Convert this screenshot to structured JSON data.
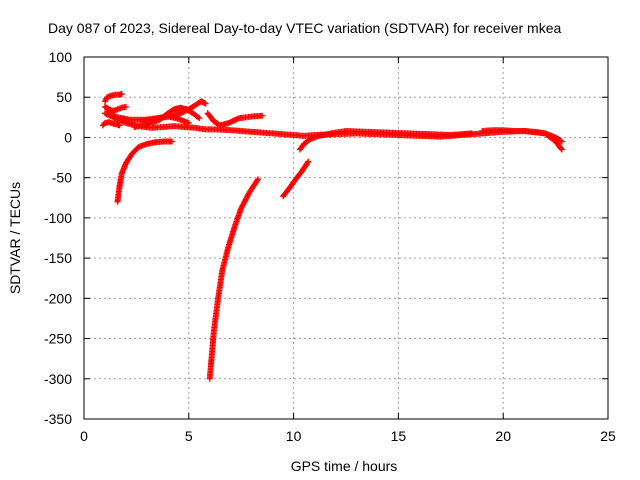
{
  "chart_data": {
    "type": "scatter",
    "title": "Day 087 of 2023, Sidereal Day-to-day VTEC variation (SDTVAR) for receiver mkea",
    "xlabel": "GPS time / hours",
    "ylabel": "SDTVAR / TECUs",
    "xlim": [
      0,
      25
    ],
    "ylim": [
      -350,
      100
    ],
    "xticks": [
      0,
      5,
      10,
      15,
      20,
      25
    ],
    "yticks": [
      100,
      50,
      0,
      -50,
      -100,
      -150,
      -200,
      -250,
      -300,
      -350
    ],
    "xtick_labels": [
      "0",
      "5",
      "10",
      "15",
      "20",
      "25"
    ],
    "ytick_labels": [
      "100",
      "50",
      "0",
      "-50",
      "-100",
      "-150",
      "-200",
      "-250",
      "-300",
      "-350"
    ],
    "grid": true,
    "legend": "none",
    "marker": "+",
    "color": "#ff0000",
    "series": [
      {
        "x": [
          1.0,
          1.1,
          1.3,
          1.5,
          1.7,
          1.8
        ],
        "y": [
          45,
          50,
          52,
          53,
          53,
          54
        ]
      },
      {
        "x": [
          1.0,
          1.2,
          1.4,
          1.6,
          1.8,
          2.0
        ],
        "y": [
          38,
          35,
          33,
          35,
          37,
          38
        ]
      },
      {
        "x": [
          0.9,
          1.0,
          1.2,
          1.4,
          1.6,
          1.7
        ],
        "y": [
          15,
          18,
          19,
          17,
          16,
          15
        ]
      },
      {
        "x": [
          1.0,
          1.4,
          2.0,
          2.6,
          3.2,
          3.8,
          4.3,
          4.8,
          5.3,
          5.8,
          6.3,
          7.0,
          8.0,
          9.0,
          10.0,
          10.5,
          11.0,
          12.0,
          13.0,
          14.0,
          15.0,
          16.0,
          17.0,
          18.0,
          19.0,
          20.0,
          21.0,
          22.0,
          22.5,
          22.8
        ],
        "y": [
          30,
          25,
          18,
          14,
          12,
          13,
          14,
          13,
          12,
          10,
          10,
          9,
          7,
          5,
          3,
          2,
          3,
          4,
          5,
          4,
          3,
          2,
          1,
          3,
          5,
          7,
          8,
          5,
          0,
          -5
        ]
      },
      {
        "x": [
          1.1,
          1.6,
          2.2,
          2.9,
          3.5,
          4.0,
          4.4,
          4.8,
          5.0
        ],
        "y": [
          30,
          25,
          22,
          22,
          24,
          26,
          24,
          20,
          18
        ]
      },
      {
        "x": [
          2.4,
          3.0,
          3.6,
          4.0,
          4.3,
          4.6,
          4.9,
          5.2,
          5.5
        ],
        "y": [
          13,
          16,
          22,
          30,
          35,
          37,
          35,
          30,
          24
        ]
      },
      {
        "x": [
          2.8,
          3.4,
          4.0,
          4.6,
          5.0,
          5.3,
          5.6,
          5.8
        ],
        "y": [
          20,
          23,
          26,
          30,
          35,
          40,
          45,
          42
        ]
      },
      {
        "x": [
          5.9,
          6.2,
          6.5,
          6.9,
          7.4,
          8.0,
          8.5
        ],
        "y": [
          30,
          20,
          15,
          18,
          24,
          26,
          27
        ]
      },
      {
        "x": [
          1.6,
          1.7,
          1.8,
          2.0,
          2.3,
          2.6,
          3.0,
          3.4,
          3.8,
          4.2
        ],
        "y": [
          -80,
          -60,
          -45,
          -32,
          -20,
          -12,
          -8,
          -6,
          -5,
          -5
        ]
      },
      {
        "x": [
          6.0,
          6.1,
          6.2,
          6.4,
          6.6,
          6.9,
          7.2,
          7.5,
          7.9,
          8.3
        ],
        "y": [
          -300,
          -270,
          -240,
          -200,
          -165,
          -135,
          -110,
          -88,
          -68,
          -52
        ]
      },
      {
        "x": [
          9.5,
          9.8,
          10.1,
          10.4,
          10.7
        ],
        "y": [
          -73,
          -63,
          -52,
          -42,
          -30
        ]
      },
      {
        "x": [
          10.3,
          10.5,
          10.8,
          11.2,
          11.6,
          12.0,
          12.5
        ],
        "y": [
          -15,
          -8,
          -2,
          2,
          4,
          6,
          8
        ]
      },
      {
        "x": [
          12.5,
          13.5,
          14.5,
          15.5,
          16.5,
          17.5,
          18.5
        ],
        "y": [
          8,
          7,
          6,
          5,
          4,
          3,
          5
        ]
      },
      {
        "x": [
          19.0,
          19.5,
          20.0,
          20.5,
          21.0,
          21.5,
          22.0,
          22.5,
          22.8
        ],
        "y": [
          8,
          9,
          9,
          8,
          8,
          7,
          5,
          -5,
          -15
        ]
      }
    ]
  }
}
